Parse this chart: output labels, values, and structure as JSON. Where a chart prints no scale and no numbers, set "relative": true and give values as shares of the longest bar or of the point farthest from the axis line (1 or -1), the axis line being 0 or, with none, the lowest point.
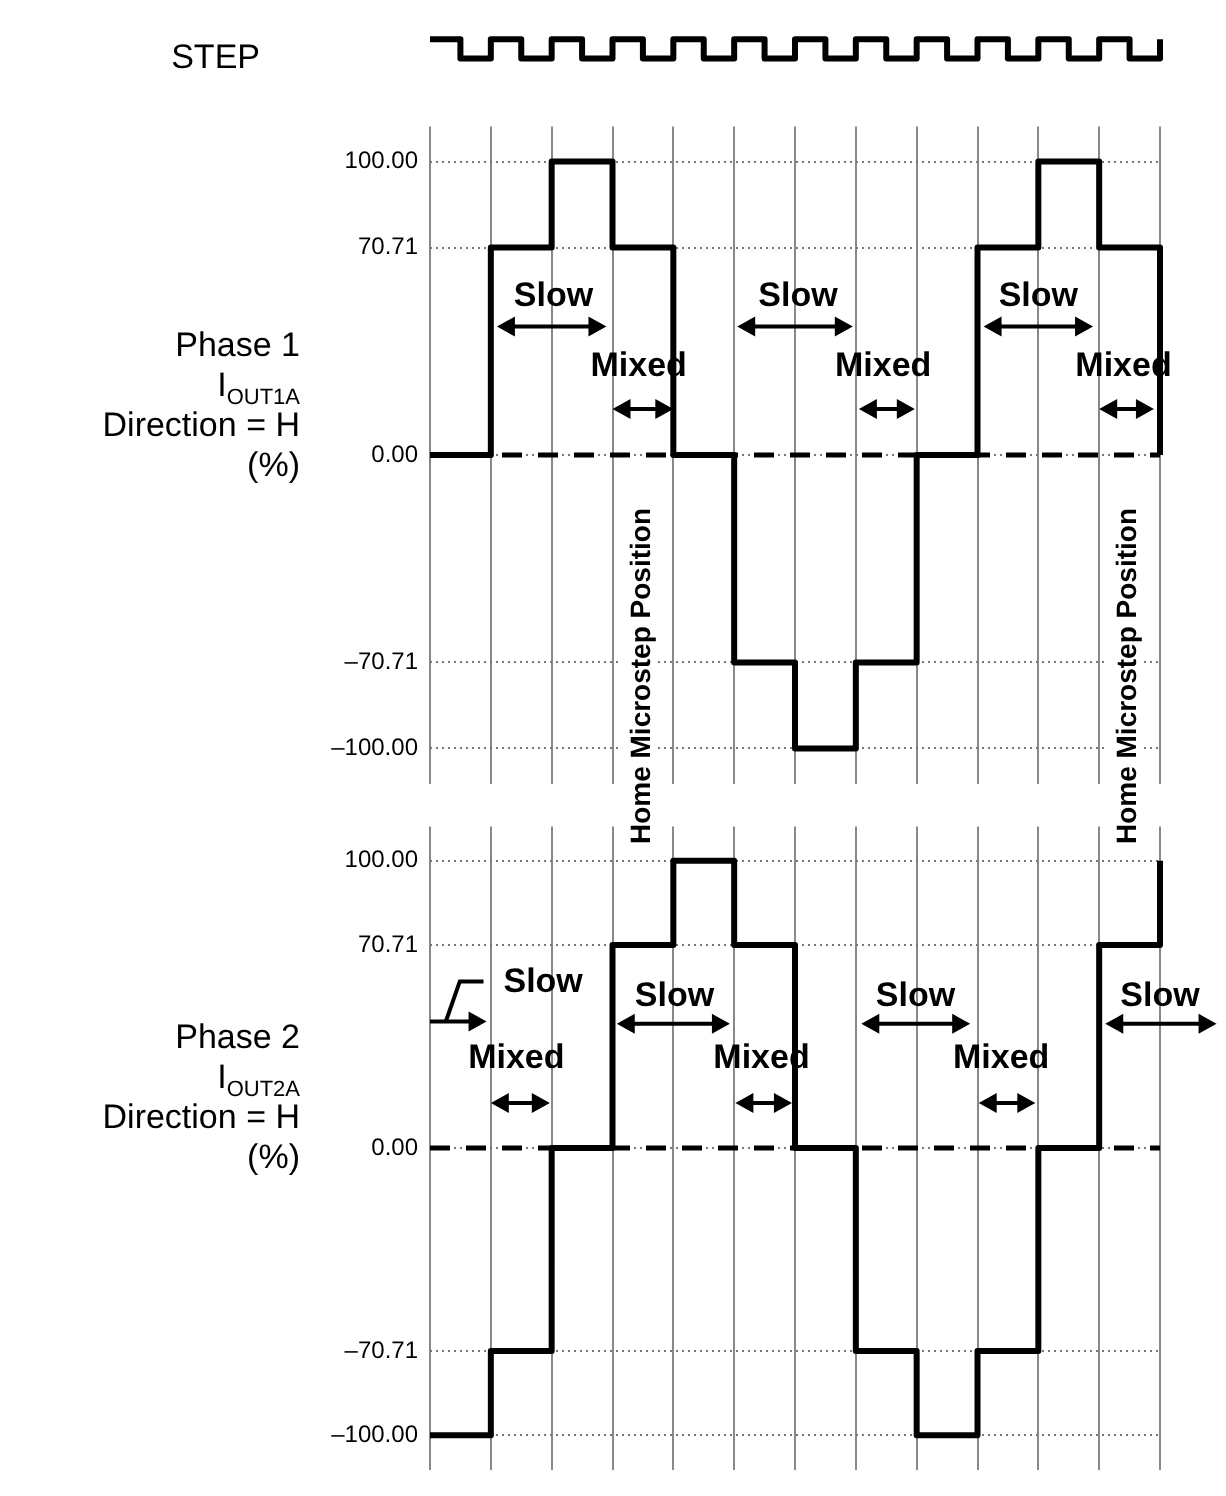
{
  "chart_data": [
    {
      "type": "step",
      "ylabel": "STEP",
      "relative": true,
      "tick_labels": false,
      "categories": [
        null,
        null,
        null,
        null,
        null,
        null,
        null,
        null,
        null,
        null,
        null,
        null,
        null,
        null,
        null,
        null,
        null,
        null,
        null,
        null,
        null,
        null,
        null,
        null,
        null
      ],
      "series": [
        {
          "color": "#000000",
          "values": [
            1,
            0,
            1,
            0,
            1,
            0,
            1,
            0,
            1,
            0,
            1,
            0,
            1,
            0,
            1,
            0,
            1,
            0,
            1,
            0,
            1,
            0,
            1,
            0,
            1
          ]
        }
      ]
    },
    {
      "type": "step",
      "ylabel": "Phase 1\nI$_{OUT1A}$\nDirection = H\n(%)",
      "tick_labels": "y",
      "grid": true,
      "categories": [
        null,
        null,
        null,
        null,
        null,
        null,
        null,
        null,
        null,
        null,
        null,
        null,
        null
      ],
      "series": [
        {
          "color": "#000000",
          "values": [
            0,
            70.71,
            100,
            70.71,
            0,
            -70.71,
            -100,
            -70.71,
            0,
            70.71,
            100,
            70.71,
            0
          ]
        }
      ],
      "ylim": [
        -112,
        112
      ],
      "yticks": [
        {
          "value": 100,
          "label": "100.00"
        },
        {
          "value": 70.71,
          "label": "70.71"
        },
        {
          "value": 0,
          "label": "0.00"
        },
        {
          "value": -70.71,
          "label": "–70.71"
        },
        {
          "value": -100,
          "label": "–100.00"
        }
      ],
      "ref_lines": [
        {
          "axis": "y",
          "value": 0,
          "line_style": "dashed",
          "color": "#000000"
        }
      ],
      "annotations": [
        "Slow",
        "Mixed",
        "Slow",
        "Mixed",
        "Slow",
        "Mixed",
        "Home Microstep Position",
        "Home Microstep Position"
      ]
    },
    {
      "type": "step",
      "ylabel": "Phase 2\nI$_{OUT2A}$\nDirection = H\n(%)",
      "tick_labels": "y",
      "grid": true,
      "categories": [
        null,
        null,
        null,
        null,
        null,
        null,
        null,
        null,
        null,
        null,
        null,
        null,
        null
      ],
      "series": [
        {
          "color": "#000000",
          "values": [
            -100,
            -70.71,
            0,
            70.71,
            100,
            70.71,
            0,
            -70.71,
            -100,
            -70.71,
            0,
            70.71,
            100
          ]
        }
      ],
      "ylim": [
        -112,
        112
      ],
      "yticks": [
        {
          "value": 100,
          "label": "100.00"
        },
        {
          "value": 70.71,
          "label": "70.71"
        },
        {
          "value": 0,
          "label": "0.00"
        },
        {
          "value": -70.71,
          "label": "–70.71"
        },
        {
          "value": -100,
          "label": "–100.00"
        }
      ],
      "ref_lines": [
        {
          "axis": "y",
          "value": 0,
          "line_style": "dashed",
          "color": "#000000"
        }
      ],
      "annotations": [
        "Slow",
        "Mixed",
        "Slow",
        "Mixed",
        "Slow",
        "Mixed",
        "Slow"
      ]
    }
  ]
}
